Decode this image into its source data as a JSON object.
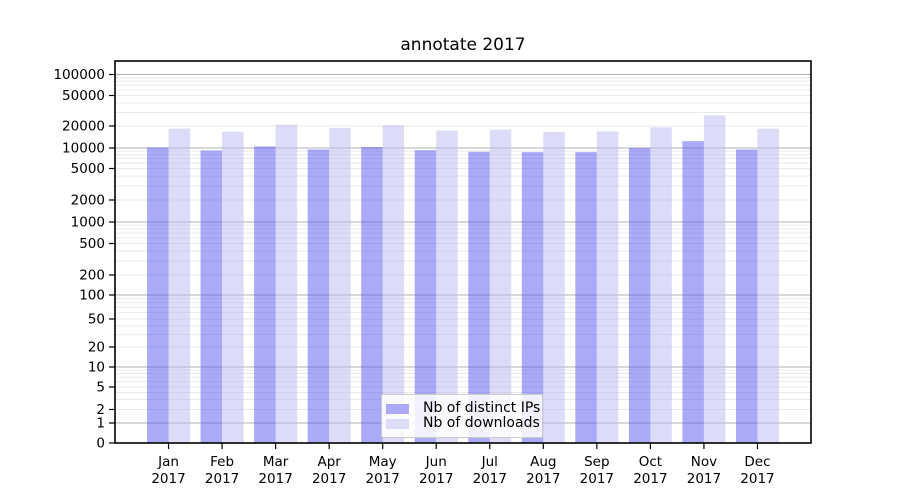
{
  "chart_data": {
    "type": "bar",
    "title": "annotate 2017",
    "yscale": "symlog",
    "ylim": [
      0,
      150000
    ],
    "grid": "both",
    "legend_position": "lower center inside plot",
    "x_year": "2017",
    "categories": [
      "Jan",
      "Feb",
      "Mar",
      "Apr",
      "May",
      "Jun",
      "Jul",
      "Aug",
      "Sep",
      "Oct",
      "Nov",
      "Dec"
    ],
    "y_ticks": {
      "values": [
        0,
        1,
        2,
        5,
        10,
        20,
        50,
        100,
        200,
        500,
        1000,
        2000,
        5000,
        10000,
        20000,
        50000,
        100000
      ],
      "labels": [
        "0",
        "1",
        "2",
        "5",
        "10",
        "20",
        "50",
        "100",
        "200",
        "500",
        "1000",
        "2000",
        "5000",
        "10000",
        "20000",
        "50000",
        "100000"
      ]
    },
    "series": [
      {
        "name": "Nb of distinct IPs",
        "color": "#aaaaf8",
        "values": [
          10200,
          9200,
          10500,
          9500,
          10300,
          9300,
          8800,
          8700,
          8700,
          10000,
          12400,
          9500
        ]
      },
      {
        "name": "Nb of downloads",
        "color": "#dcdcf8",
        "values": [
          18400,
          16700,
          20800,
          18800,
          20500,
          17300,
          17800,
          16600,
          16900,
          19200,
          27500,
          18400
        ]
      }
    ]
  }
}
